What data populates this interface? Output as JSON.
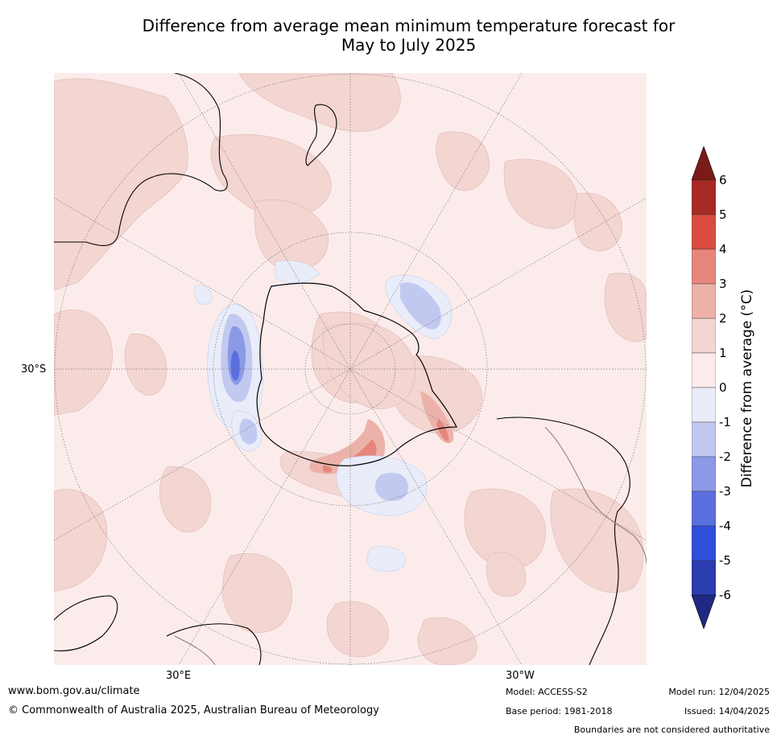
{
  "title": {
    "line1": "Difference from average mean minimum temperature forecast for",
    "line2": "May to July 2025"
  },
  "map": {
    "projection": "south polar stereographic",
    "lat_label": "30°S",
    "lon_labels": [
      "30°E",
      "30°W"
    ],
    "background_color": "#fbeceb"
  },
  "colorbar": {
    "label": "Difference from average (°C)",
    "ticks": [
      "6",
      "5",
      "4",
      "3",
      "2",
      "1",
      "0",
      "-1",
      "-2",
      "-3",
      "-4",
      "-5",
      "-6"
    ],
    "colors": {
      "gt6": "#7a1b17",
      "5_6": "#a72a23",
      "4_5": "#da4c40",
      "3_4": "#e7867c",
      "2_3": "#ecb2aa",
      "1_2": "#f3d5d1",
      "0_1": "#fbeceb",
      "m1_0": "#e9ecf9",
      "m2_m1": "#c2c9f0",
      "m3_m2": "#8b99e7",
      "m4_m3": "#5a6fdd",
      "m5_m4": "#2f4ed9",
      "m6_m5": "#2a3db0",
      "lt_m6": "#1e2a82"
    }
  },
  "footer": {
    "url": "www.bom.gov.au/climate",
    "copyright": "© Commonwealth of Australia 2025, Australian Bureau of Meteorology",
    "model": "Model: ACCESS-S2",
    "base_period": "Base period: 1981-2018",
    "model_run": "Model run: 12/04/2025",
    "issued": "Issued: 14/04/2025",
    "disclaimer": "Boundaries are not considered authoritative"
  }
}
